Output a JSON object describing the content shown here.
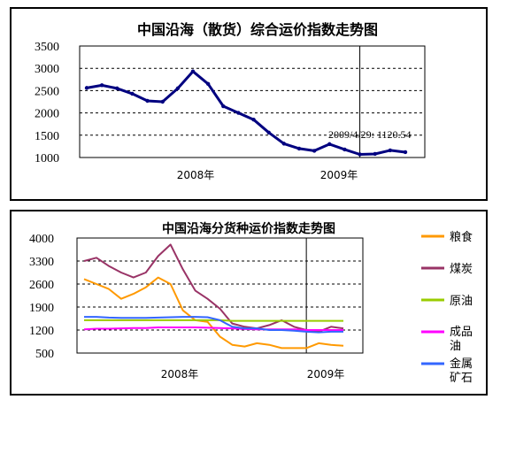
{
  "chart_data": [
    {
      "type": "line",
      "title": "中国沿海（散货）综合运价指数走势图",
      "xlabel": "",
      "ylabel": "",
      "x_tick_labels": [
        "2008年",
        "2009年"
      ],
      "x": [
        "2007-07",
        "2007-08",
        "2007-09",
        "2007-10",
        "2007-11",
        "2007-12",
        "2008-01",
        "2008-02",
        "2008-03",
        "2008-04",
        "2008-05",
        "2008-06",
        "2008-07",
        "2008-08",
        "2008-09",
        "2008-10",
        "2008-11",
        "2008-12",
        "2009-01",
        "2009-02",
        "2009-03",
        "2009-04"
      ],
      "ylim": [
        1000,
        3500
      ],
      "yticks": [
        1000,
        1500,
        2000,
        2500,
        3000,
        3500
      ],
      "grid": "horizontal-dashed",
      "divider_at": "2009-01",
      "series": [
        {
          "color": "#000080",
          "values": [
            2560,
            2620,
            2550,
            2430,
            2270,
            2250,
            2550,
            2930,
            2650,
            2150,
            2000,
            1850,
            1560,
            1310,
            1200,
            1150,
            1300,
            1180,
            1070,
            1080,
            1160,
            1120
          ]
        }
      ],
      "annotation": "2009/4/29: 1120.54"
    },
    {
      "type": "line",
      "title": "中国沿海分货种运价指数走势图",
      "xlabel": "",
      "ylabel": "",
      "x_tick_labels": [
        "2008年",
        "2009年"
      ],
      "x": [
        "2007-07",
        "2007-08",
        "2007-09",
        "2007-10",
        "2007-11",
        "2007-12",
        "2008-01",
        "2008-02",
        "2008-03",
        "2008-04",
        "2008-05",
        "2008-06",
        "2008-07",
        "2008-08",
        "2008-09",
        "2008-10",
        "2008-11",
        "2008-12",
        "2009-01",
        "2009-02",
        "2009-03",
        "2009-04"
      ],
      "ylim": [
        500,
        4000
      ],
      "yticks": [
        500,
        1200,
        1900,
        2600,
        3300,
        4000
      ],
      "grid": "horizontal-dashed",
      "divider_at": "2009-01",
      "legend_position": "right",
      "series": [
        {
          "name": "粮食",
          "color": "#FF9900",
          "values": [
            2750,
            2600,
            2450,
            2150,
            2300,
            2500,
            2800,
            2600,
            1800,
            1500,
            1450,
            1000,
            750,
            700,
            800,
            750,
            650,
            650,
            650,
            800,
            750,
            720
          ]
        },
        {
          "name": "煤炭",
          "color": "#993366",
          "values": [
            3300,
            3400,
            3150,
            2950,
            2800,
            2950,
            3450,
            3800,
            3050,
            2400,
            2150,
            1850,
            1400,
            1300,
            1250,
            1350,
            1500,
            1300,
            1200,
            1150,
            1300,
            1250
          ]
        },
        {
          "name": "原油",
          "color": "#99CC00",
          "values": [
            1500,
            1500,
            1500,
            1500,
            1500,
            1500,
            1500,
            1500,
            1500,
            1500,
            1500,
            1500,
            1480,
            1480,
            1480,
            1480,
            1480,
            1480,
            1480,
            1480,
            1480,
            1480
          ]
        },
        {
          "name": "成品油",
          "color": "#FF00FF",
          "values": [
            1220,
            1240,
            1240,
            1250,
            1260,
            1260,
            1280,
            1280,
            1280,
            1280,
            1270,
            1260,
            1250,
            1230,
            1220,
            1220,
            1220,
            1220,
            1200,
            1200,
            1200,
            1200
          ]
        },
        {
          "name": "金属矿石",
          "color": "#3366FF",
          "values": [
            1600,
            1600,
            1580,
            1570,
            1570,
            1570,
            1580,
            1590,
            1600,
            1600,
            1590,
            1500,
            1300,
            1250,
            1250,
            1200,
            1200,
            1180,
            1150,
            1130,
            1150,
            1150
          ]
        }
      ]
    }
  ]
}
